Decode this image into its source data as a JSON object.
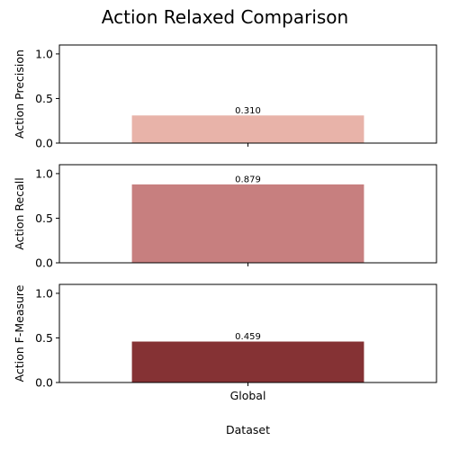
{
  "chart_data": {
    "type": "bar",
    "title": "Action Relaxed Comparison",
    "xlabel": "Dataset",
    "categories": [
      "Global"
    ],
    "panels": [
      {
        "ylabel": "Action Precision",
        "values": [
          0.31
        ],
        "value_labels": [
          "0.310"
        ],
        "color": "#e8b3a9",
        "ylim": [
          0,
          1.1
        ],
        "yticks": [
          0.0,
          0.5,
          1.0
        ],
        "ytick_labels": [
          "0.0",
          "0.5",
          "1.0"
        ]
      },
      {
        "ylabel": "Action Recall",
        "values": [
          0.879
        ],
        "value_labels": [
          "0.879"
        ],
        "color": "#c77f7f",
        "ylim": [
          0,
          1.1
        ],
        "yticks": [
          0.0,
          0.5,
          1.0
        ],
        "ytick_labels": [
          "0.0",
          "0.5",
          "1.0"
        ]
      },
      {
        "ylabel": "Action F-Measure",
        "values": [
          0.459
        ],
        "value_labels": [
          "0.459"
        ],
        "color": "#853234",
        "ylim": [
          0,
          1.1
        ],
        "yticks": [
          0.0,
          0.5,
          1.0
        ],
        "ytick_labels": [
          "0.0",
          "0.5",
          "1.0"
        ]
      }
    ],
    "grid": false,
    "legend": "none"
  }
}
